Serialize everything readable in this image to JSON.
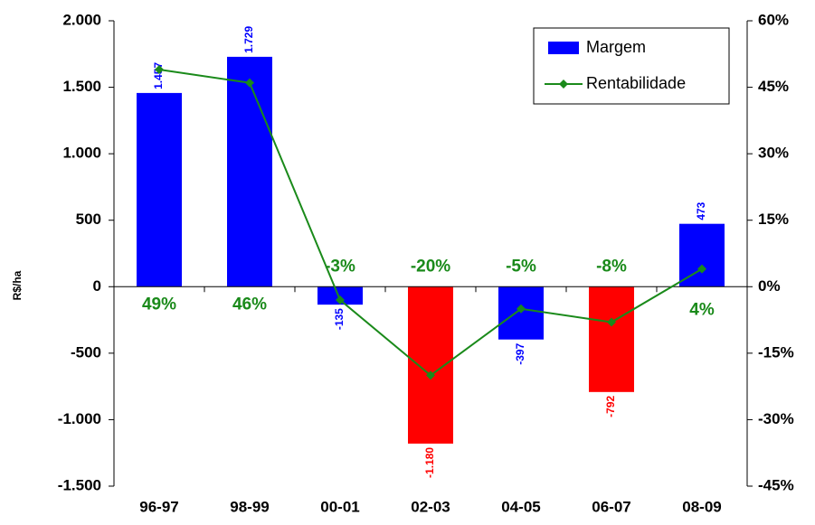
{
  "chart_data": {
    "type": "bar_line",
    "categories": [
      "96-97",
      "98-99",
      "00-01",
      "02-03",
      "04-05",
      "06-07",
      "08-09"
    ],
    "series": [
      {
        "name": "Margem",
        "type": "bar",
        "color": "#0000ff",
        "colors": [
          "#0000ff",
          "#0000ff",
          "#0000ff",
          "#ff0000",
          "#0000ff",
          "#ff0000",
          "#0000ff"
        ],
        "values": [
          1457,
          1729,
          -135,
          -1180,
          -397,
          -792,
          473
        ],
        "value_labels": [
          "1.457",
          "1.729",
          "-135",
          "-1.180",
          "-397",
          "-792",
          "473"
        ]
      },
      {
        "name": "Rentabilidade",
        "type": "line",
        "axis": "y2",
        "color": "#1a8a1a",
        "values": [
          49,
          46,
          -3,
          -20,
          -5,
          -8,
          4
        ],
        "value_labels": [
          "49%",
          "46%",
          "-3%",
          "-20%",
          "-5%",
          "-8%",
          "4%"
        ]
      }
    ],
    "ylabel": "R$/ha",
    "ylim": [
      -1500,
      2000
    ],
    "yticks": [
      {
        "value": -1500,
        "label": "-1.500"
      },
      {
        "value": -1000,
        "label": "-1.000"
      },
      -500,
      0,
      500,
      {
        "value": 1000,
        "label": "1.000"
      },
      {
        "value": 1500,
        "label": "1.500"
      },
      {
        "value": 2000,
        "label": "2.000"
      }
    ],
    "y2lim": [
      -45,
      60
    ],
    "y2ticks": [
      {
        "value": -45,
        "label": "-45%"
      },
      {
        "value": -30,
        "label": "-30%"
      },
      {
        "value": -15,
        "label": "-15%"
      },
      {
        "value": 0,
        "label": "0%"
      },
      {
        "value": 15,
        "label": "15%"
      },
      {
        "value": 30,
        "label": "30%"
      },
      {
        "value": 45,
        "label": "45%"
      },
      {
        "value": 60,
        "label": "60%"
      }
    ],
    "legend": "upper right"
  }
}
